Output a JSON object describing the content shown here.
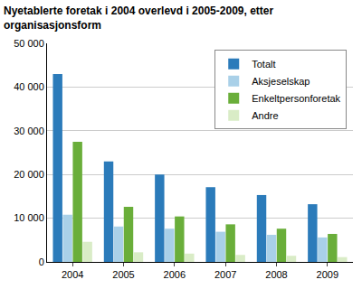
{
  "chart_data": {
    "type": "bar",
    "title": "Nyetablerte foretak i 2004 overlevd i 2005-2009, etter organisasjonsform",
    "categories": [
      "2004",
      "2005",
      "2006",
      "2007",
      "2008",
      "2009"
    ],
    "series": [
      {
        "name": "Totalt",
        "color": "#2b7bba",
        "values": [
          43000,
          23000,
          20000,
          17100,
          15300,
          13200
        ]
      },
      {
        "name": "Aksjeselskap",
        "color": "#a9d0e8",
        "values": [
          10800,
          8100,
          7600,
          6900,
          6200,
          5600
        ]
      },
      {
        "name": "Enkeltpersonforetak",
        "color": "#6aae3a",
        "values": [
          27500,
          12600,
          10400,
          8600,
          7600,
          6400
        ]
      },
      {
        "name": "Andre",
        "color": "#d9ecc6",
        "values": [
          4600,
          2200,
          1900,
          1600,
          1400,
          1100
        ]
      }
    ],
    "ylim": [
      0,
      50000
    ],
    "yticks": [
      0,
      {
        "value": 10000,
        "label": "10 000"
      },
      {
        "value": 20000,
        "label": "20 000"
      },
      {
        "value": 30000,
        "label": "30 000"
      },
      {
        "value": 40000,
        "label": "40 000"
      },
      {
        "value": 50000,
        "label": "50 000"
      }
    ],
    "grid": true,
    "legend": "top right"
  }
}
